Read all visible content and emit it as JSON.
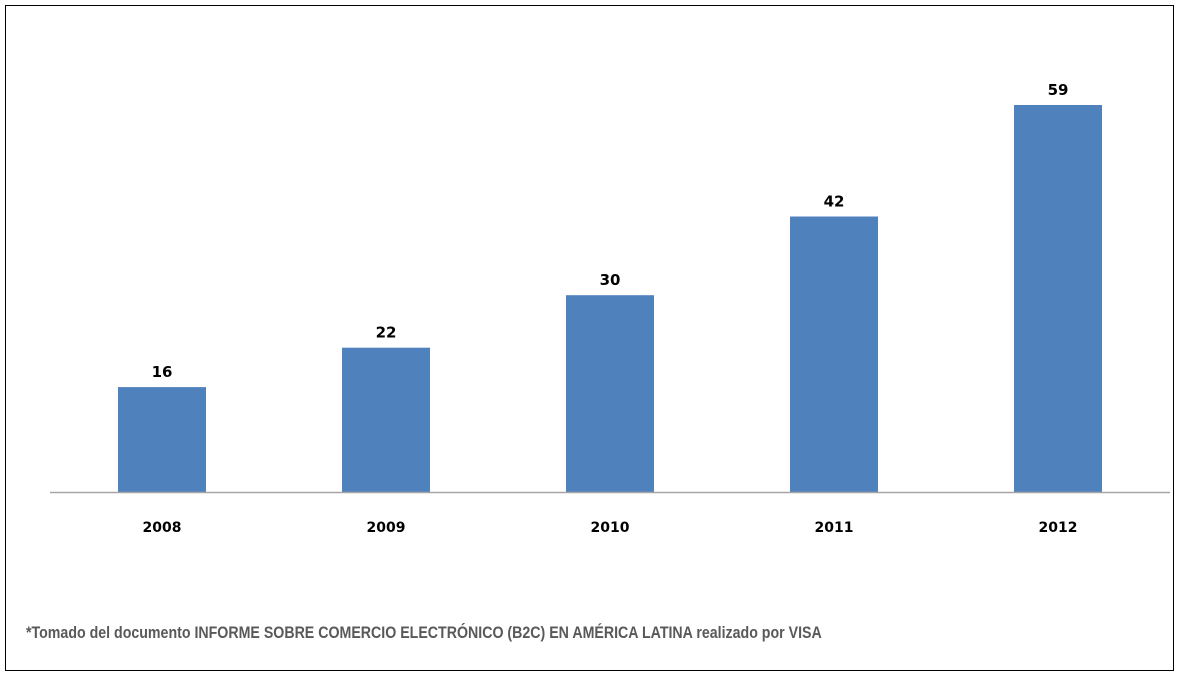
{
  "chart_data": {
    "type": "bar",
    "categories": [
      "2008",
      "2009",
      "2010",
      "2011",
      "2012"
    ],
    "values": [
      16,
      22,
      30,
      42,
      59
    ],
    "data_labels": [
      "16",
      "22",
      "30",
      "42",
      "59"
    ],
    "ylim": [
      0,
      59
    ],
    "grid": false,
    "legend": "none",
    "bar_color": "#4F81BD",
    "axis_color": "#A6A6A6"
  },
  "footnote": "*Tomado del documento INFORME SOBRE COMERCIO ELECTRÓNICO (B2C) EN AMÉRICA LATINA realizado por VISA"
}
